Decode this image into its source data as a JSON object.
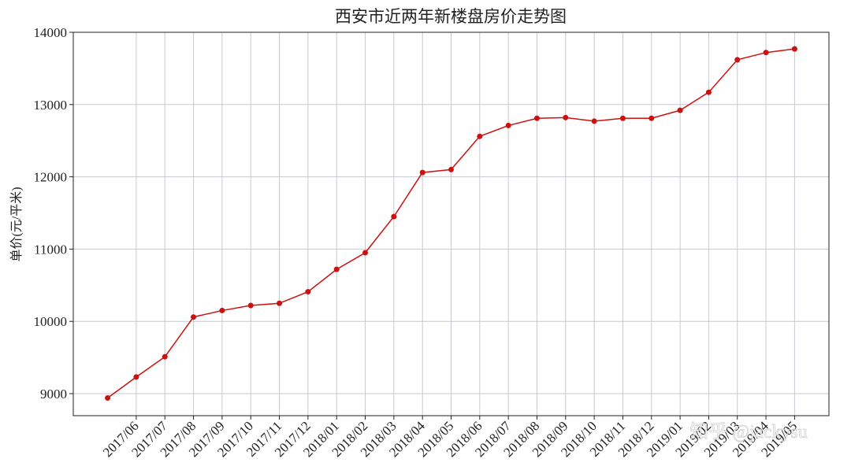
{
  "chart_data": {
    "type": "line",
    "title": "西安市近两年新楼盘房价走势图",
    "y_label": "单价(元/平米)",
    "categories": [
      null,
      "2017/06",
      "2017/07",
      "2017/08",
      "2017/09",
      "2017/10",
      "2017/11",
      "2017/12",
      "2018/01",
      "2018/02",
      "2018/03",
      "2018/04",
      "2018/05",
      "2018/06",
      "2018/07",
      "2018/08",
      "2018/09",
      "2018/10",
      "2018/11",
      "2018/12",
      "2019/01",
      "2019/02",
      "2019/03",
      "2019/04",
      "2019/05"
    ],
    "series": [
      {
        "name": "单价",
        "color": "#cc1111",
        "values": [
          8940,
          9230,
          9510,
          10060,
          10150,
          10220,
          10250,
          10410,
          10720,
          10950,
          11450,
          12060,
          12100,
          12560,
          12710,
          12810,
          12820,
          12770,
          12810,
          12810,
          12920,
          13170,
          13620,
          13720,
          13770
        ]
      }
    ],
    "ylim": [
      8695,
      14000
    ],
    "yticks": [
      9000,
      10000,
      11000,
      12000,
      13000,
      14000
    ],
    "grid": true,
    "watermark": "知乎 @jackysu"
  }
}
